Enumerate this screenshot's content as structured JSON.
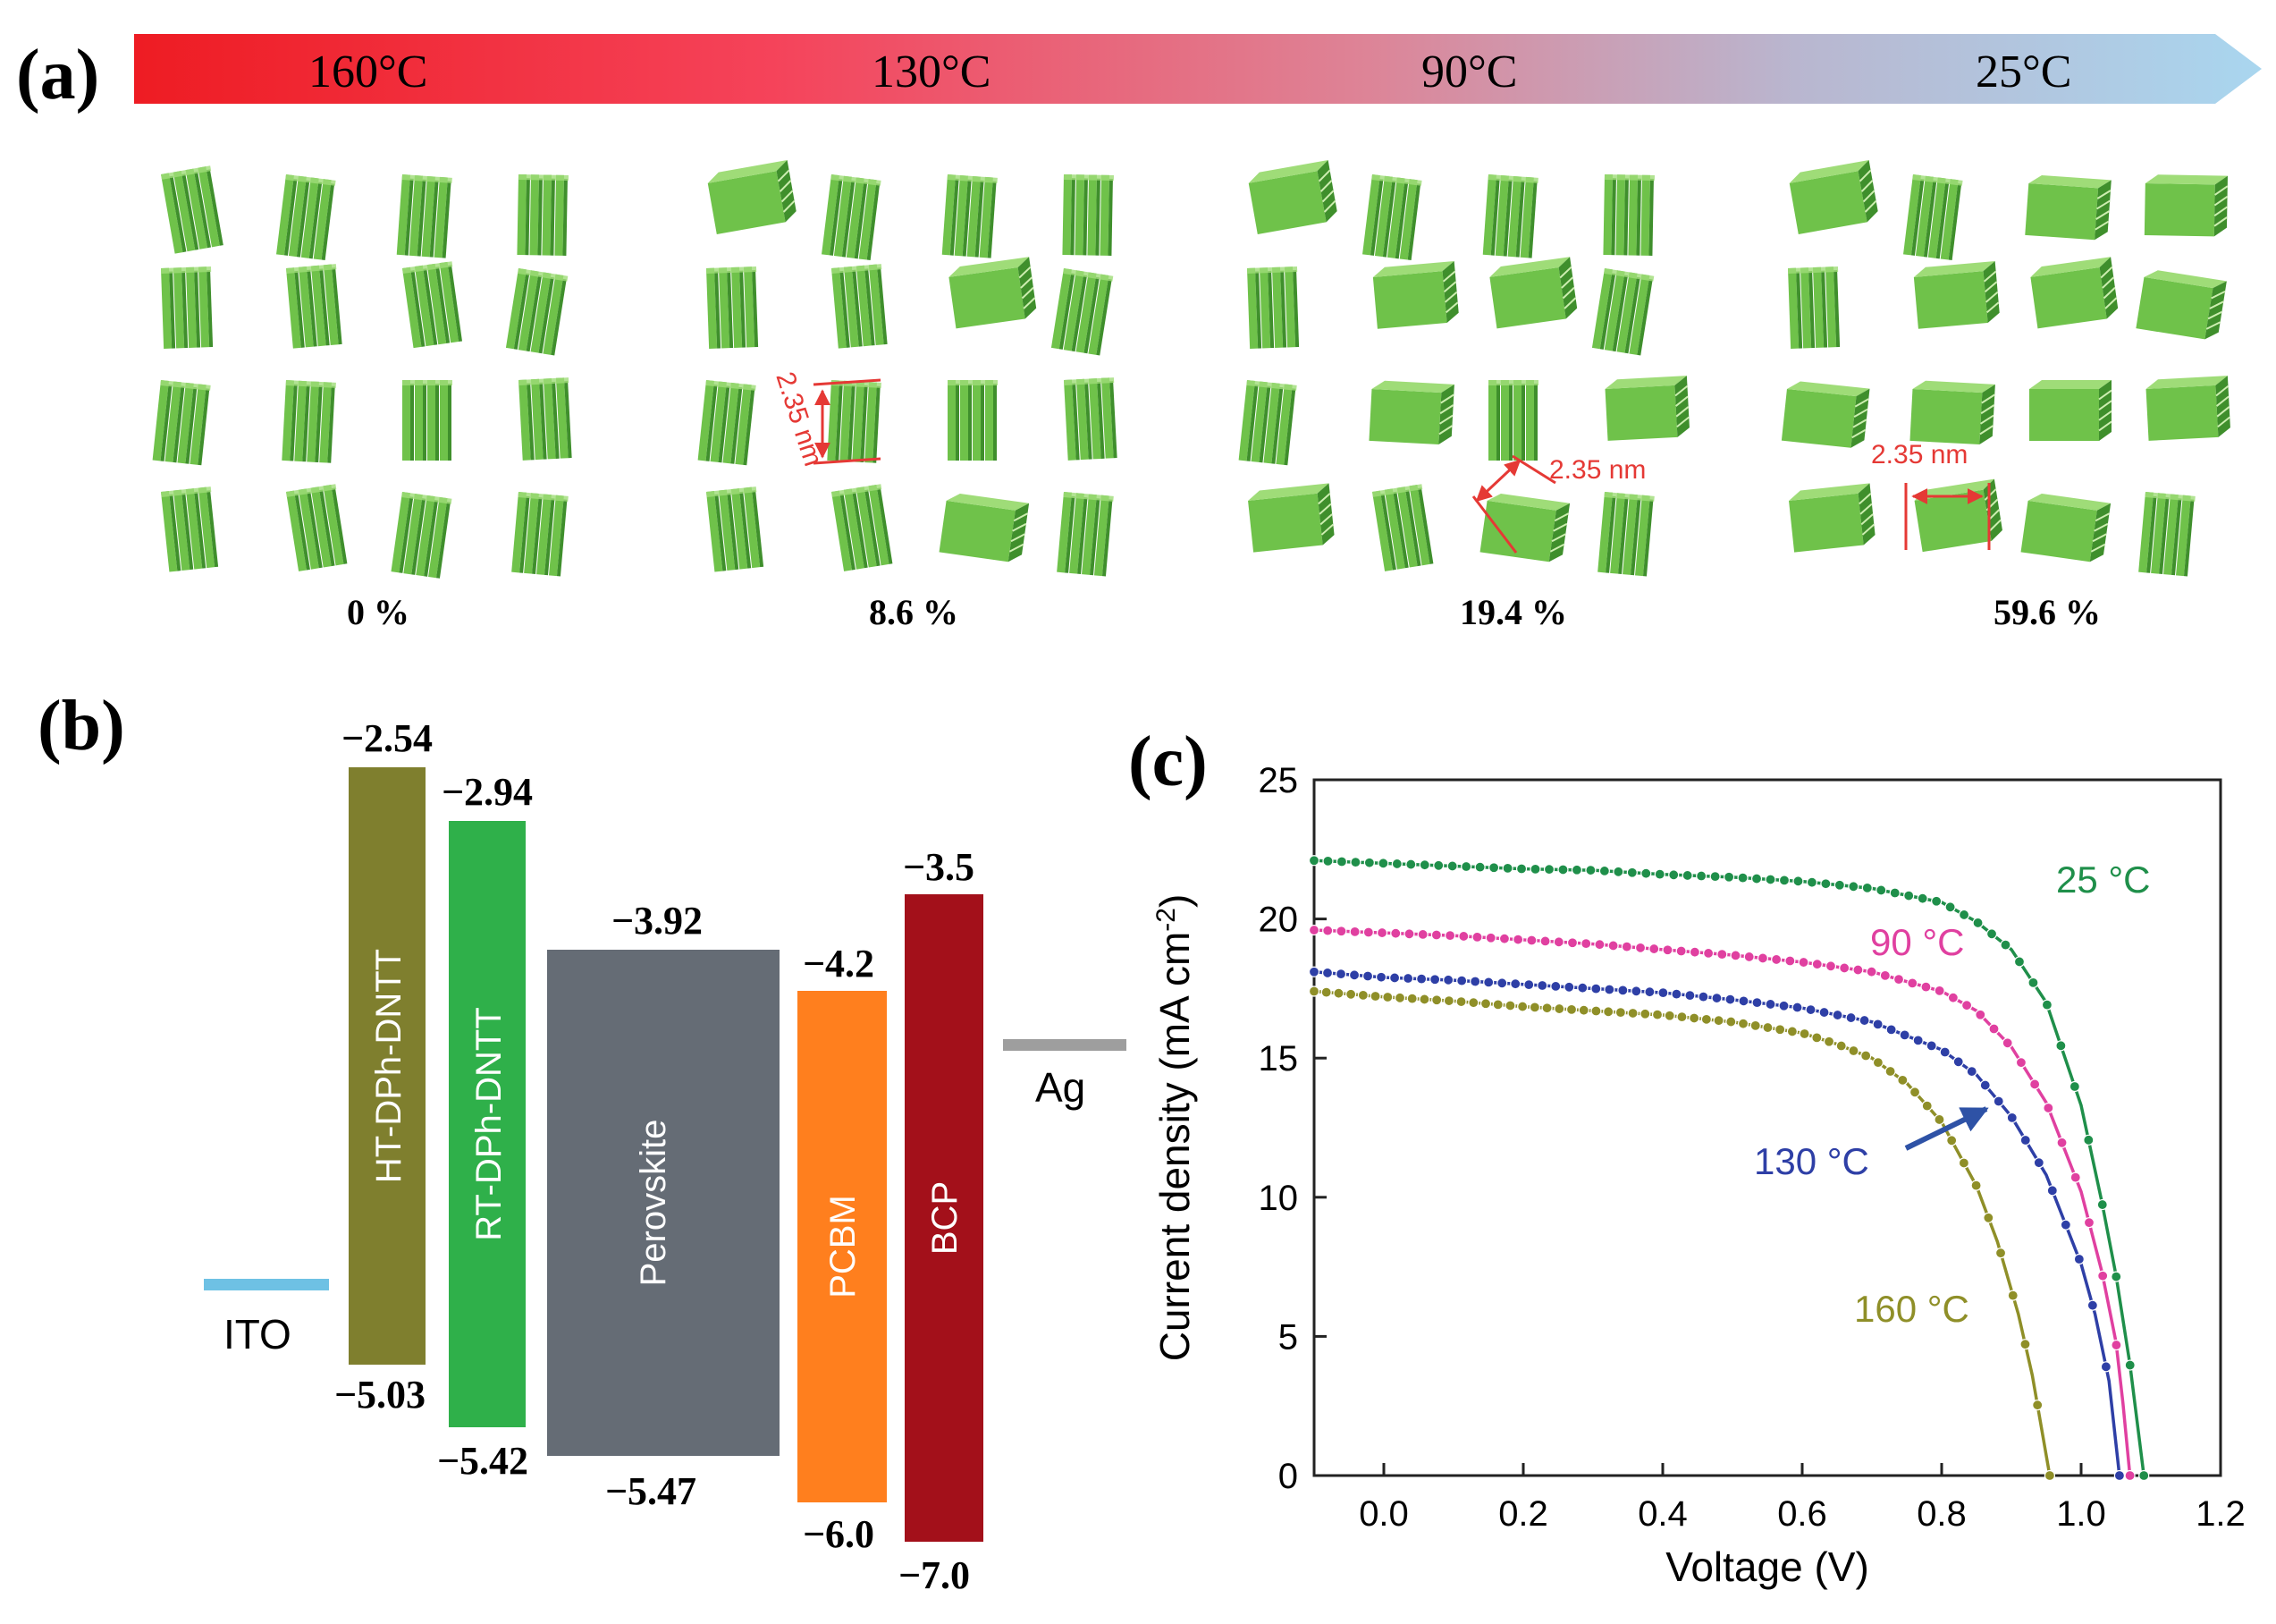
{
  "colors": {
    "hot": "#ee1c23",
    "cool": "#a9d6ef",
    "crystal_face": "#6fc24a",
    "crystal_side": "#3f8f2c",
    "crystal_top": "#9fdc78",
    "annotation": "#e53935",
    "ito": "#6ec1e4",
    "ag": "#9e9e9e",
    "ht": "#7f7f2e",
    "rt": "#2fb04a",
    "perovskite": "#656c75",
    "pcbm": "#ff7f1e",
    "bcp": "#a3101a",
    "c25": "#1f8f4a",
    "c90": "#e040a0",
    "c130": "#2e3fa6",
    "c160": "#8f8f28"
  },
  "panel_a": {
    "label": "(a)",
    "temps": [
      "160°C",
      "130°C",
      "90°C",
      "25°C"
    ],
    "groups": [
      {
        "percent": "0 %",
        "orientation": [
          "v",
          "v",
          "v",
          "v",
          "v",
          "v",
          "v",
          "v",
          "v",
          "v",
          "v",
          "v",
          "v",
          "v",
          "v",
          "v"
        ],
        "annotation": ""
      },
      {
        "percent": "8.6 %",
        "orientation": [
          "h",
          "v",
          "v",
          "v",
          "v",
          "v",
          "h",
          "v",
          "v",
          "v",
          "v",
          "v",
          "v",
          "v",
          "h",
          "v"
        ],
        "annotation": "2.35 nm"
      },
      {
        "percent": "19.4 %",
        "orientation": [
          "h",
          "v",
          "v",
          "v",
          "v",
          "h",
          "h",
          "v",
          "v",
          "h",
          "v",
          "h",
          "h",
          "v",
          "h",
          "v"
        ],
        "annotation": "2.35 nm"
      },
      {
        "percent": "59.6 %",
        "orientation": [
          "h",
          "v",
          "h",
          "h",
          "v",
          "h",
          "h",
          "h",
          "h",
          "h",
          "h",
          "h",
          "h",
          "h",
          "h",
          "v"
        ],
        "annotation": "2.35 nm"
      }
    ]
  },
  "panel_b": {
    "label": "(b)",
    "electrodes": [
      {
        "name": "ITO",
        "color_key": "ito"
      },
      {
        "name": "Ag",
        "color_key": "ag"
      }
    ],
    "layers": [
      {
        "name": "HT-DPh-DNTT",
        "top": "−2.54",
        "bottom": "−5.03",
        "lumo": -2.54,
        "homo": -5.03,
        "color_key": "ht"
      },
      {
        "name": "RT-DPh-DNTT",
        "top": "−2.94",
        "bottom": "−5.42",
        "lumo": -2.94,
        "homo": -5.42,
        "color_key": "rt"
      },
      {
        "name": "Perovskite",
        "top": "−3.92",
        "bottom": "−5.47",
        "lumo": -3.92,
        "homo": -5.47,
        "color_key": "perovskite"
      },
      {
        "name": "PCBM",
        "top": "−4.2",
        "bottom": "−6.0",
        "lumo": -4.2,
        "homo": -6.0,
        "color_key": "pcbm"
      },
      {
        "name": "BCP",
        "top": "−3.5",
        "bottom": "−7.0",
        "lumo": -3.5,
        "homo": -7.0,
        "color_key": "bcp"
      }
    ]
  },
  "chart_data": {
    "label": "(c)",
    "type": "line",
    "xlabel": "Voltage (V)",
    "ylabel": "Current density (mA cm",
    "ylabel_sup": "-2",
    "ylabel_close": ")",
    "xlim": [
      -0.1,
      1.2
    ],
    "ylim": [
      0,
      25
    ],
    "xticks": [
      0.0,
      0.2,
      0.4,
      0.6,
      0.8,
      1.0,
      1.2
    ],
    "xtick_labels": [
      "0.0",
      "0.2",
      "0.4",
      "0.6",
      "0.8",
      "1.0",
      "1.2"
    ],
    "yticks": [
      0,
      5,
      10,
      15,
      20,
      25
    ],
    "ytick_labels": [
      "0",
      "5",
      "10",
      "15",
      "20",
      "25"
    ],
    "series": [
      {
        "name": "25 °C",
        "color_key": "c25",
        "jsc": 22.1,
        "voc": 1.09,
        "x": [
          -0.1,
          0.0,
          0.1,
          0.2,
          0.3,
          0.4,
          0.5,
          0.6,
          0.7,
          0.8,
          0.85,
          0.9,
          0.95,
          1.0,
          1.03,
          1.05,
          1.07,
          1.08,
          1.09
        ],
        "y": [
          22.1,
          22.0,
          21.9,
          21.8,
          21.75,
          21.6,
          21.5,
          21.35,
          21.1,
          20.6,
          19.9,
          18.9,
          17.0,
          13.3,
          9.8,
          7.2,
          4.0,
          2.0,
          0.0
        ]
      },
      {
        "name": "90 °C",
        "color_key": "c90",
        "jsc": 19.6,
        "voc": 1.07,
        "x": [
          -0.1,
          0.0,
          0.1,
          0.2,
          0.3,
          0.4,
          0.5,
          0.6,
          0.7,
          0.8,
          0.85,
          0.9,
          0.95,
          1.0,
          1.03,
          1.05,
          1.06,
          1.07
        ],
        "y": [
          19.6,
          19.5,
          19.4,
          19.25,
          19.1,
          18.9,
          18.7,
          18.45,
          18.1,
          17.4,
          16.7,
          15.4,
          13.4,
          10.2,
          7.3,
          4.8,
          2.6,
          0.0
        ]
      },
      {
        "name": "130 °C",
        "color_key": "c130",
        "jsc": 18.1,
        "voc": 1.055,
        "x": [
          -0.1,
          0.0,
          0.1,
          0.2,
          0.3,
          0.4,
          0.5,
          0.6,
          0.7,
          0.8,
          0.85,
          0.9,
          0.95,
          1.0,
          1.02,
          1.04,
          1.055
        ],
        "y": [
          18.1,
          17.9,
          17.8,
          17.65,
          17.5,
          17.35,
          17.1,
          16.8,
          16.3,
          15.3,
          14.4,
          12.9,
          10.8,
          7.6,
          5.8,
          3.4,
          0.0
        ]
      },
      {
        "name": "160 °C",
        "color_key": "c160",
        "jsc": 17.4,
        "voc": 0.955,
        "x": [
          -0.1,
          0.0,
          0.1,
          0.2,
          0.3,
          0.4,
          0.5,
          0.6,
          0.65,
          0.7,
          0.75,
          0.8,
          0.85,
          0.88,
          0.91,
          0.93,
          0.955
        ],
        "y": [
          17.4,
          17.2,
          17.05,
          16.85,
          16.7,
          16.55,
          16.3,
          15.9,
          15.5,
          15.0,
          14.1,
          12.7,
          10.4,
          8.4,
          5.8,
          3.6,
          0.0
        ]
      }
    ]
  }
}
